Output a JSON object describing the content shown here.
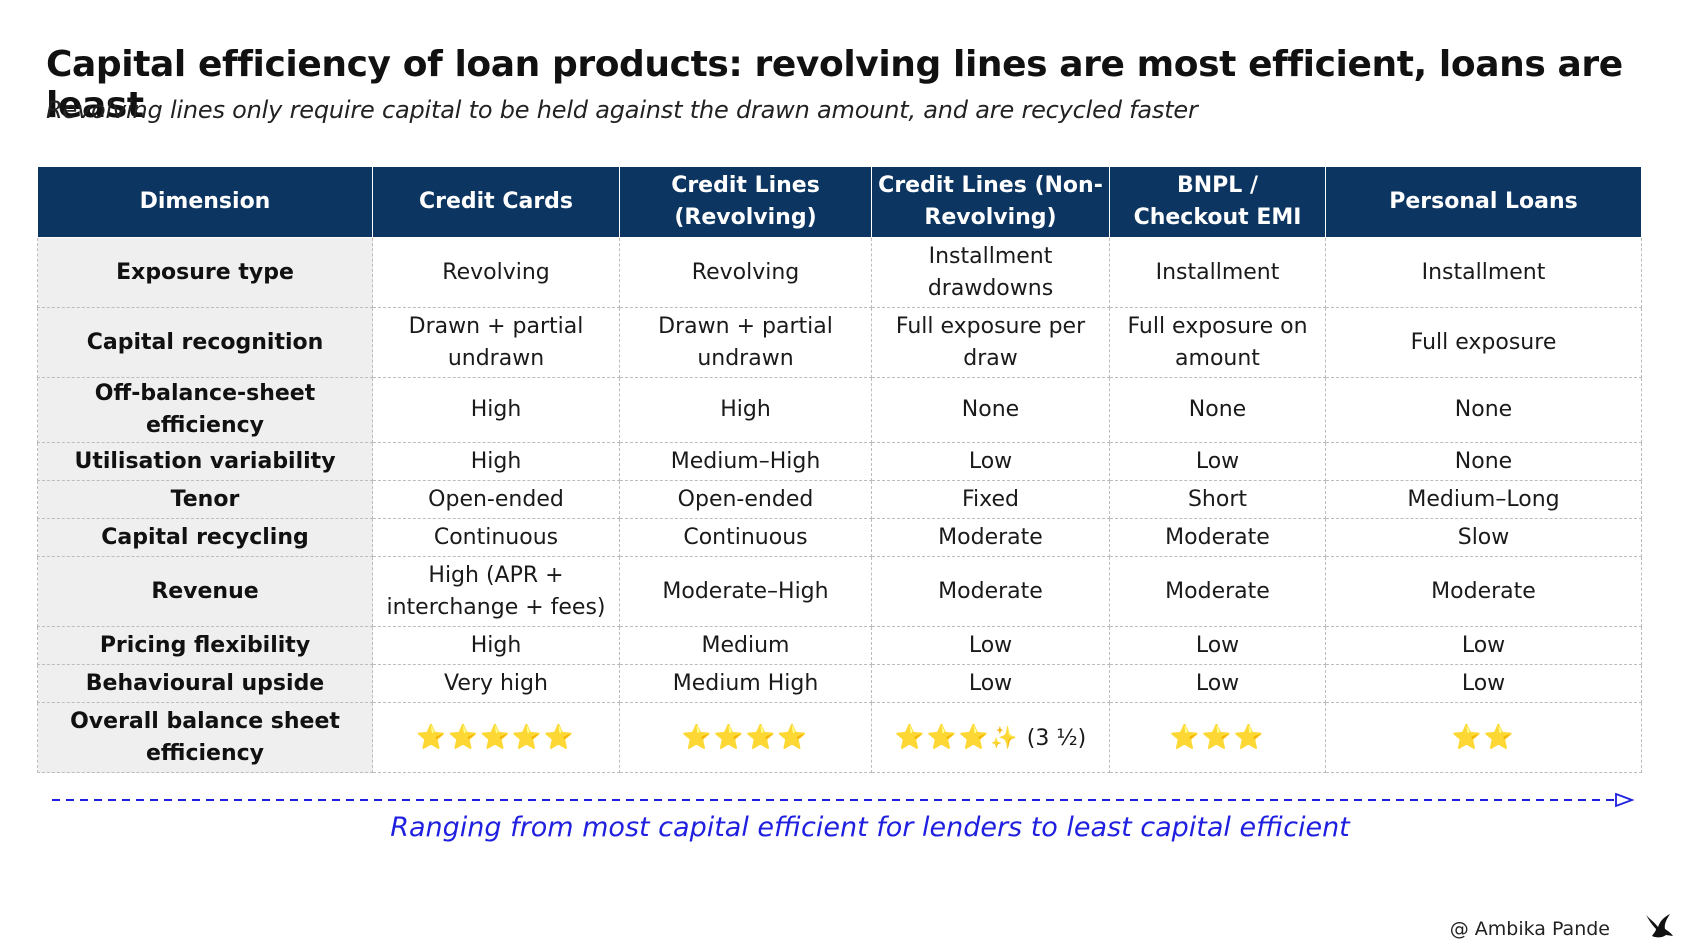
{
  "header": {
    "title": "Capital efficiency of loan products: revolving lines are most efficient, loans are least",
    "subtitle": "Revolving lines only require capital to be held against the drawn amount, and are recycled faster"
  },
  "table": {
    "columns": [
      "Dimension",
      "Credit Cards",
      "Credit Lines (Revolving)",
      "Credit Lines (Non-Revolving)",
      "BNPL / Checkout EMI",
      "Personal Loans"
    ],
    "rows": [
      {
        "dimension": "Exposure type",
        "cells": [
          "Revolving",
          "Revolving",
          "Installment drawdowns",
          "Installment",
          "Installment"
        ]
      },
      {
        "dimension": "Capital recognition",
        "cells": [
          "Drawn + partial undrawn",
          "Drawn + partial undrawn",
          "Full exposure per draw",
          "Full exposure on amount",
          "Full exposure"
        ]
      },
      {
        "dimension": "Off-balance-sheet efficiency",
        "cells": [
          "High",
          "High",
          "None",
          "None",
          "None"
        ]
      },
      {
        "dimension": "Utilisation variability",
        "cells": [
          "High",
          "Medium–High",
          "Low",
          "Low",
          "None"
        ]
      },
      {
        "dimension": "Tenor",
        "cells": [
          "Open-ended",
          "Open-ended",
          "Fixed",
          "Short",
          "Medium–Long"
        ]
      },
      {
        "dimension": "Capital recycling",
        "cells": [
          "Continuous",
          "Continuous",
          "Moderate",
          "Moderate",
          "Slow"
        ]
      },
      {
        "dimension": "Revenue",
        "cells": [
          "High (APR + interchange + fees)",
          "Moderate–High",
          "Moderate",
          "Moderate",
          "Moderate"
        ]
      },
      {
        "dimension": "Pricing flexibility",
        "cells": [
          "High",
          "Medium",
          "Low",
          "Low",
          "Low"
        ]
      },
      {
        "dimension": "Behavioural upside",
        "cells": [
          "Very high",
          "Medium High",
          "Low",
          "Low",
          "Low"
        ]
      }
    ],
    "rating_row": {
      "dimension": "Overall balance sheet efficiency",
      "ratings": [
        {
          "stars": "⭐⭐⭐⭐⭐",
          "value": 5
        },
        {
          "stars": "⭐⭐⭐⭐",
          "value": 4
        },
        {
          "stars": "⭐⭐⭐",
          "sparkle": "✨",
          "note": "(3 ½)",
          "value": 3.5
        },
        {
          "stars": "⭐⭐⭐",
          "value": 3
        },
        {
          "stars": "⭐⭐",
          "value": 2
        }
      ]
    }
  },
  "footer": {
    "caption": "Ranging from most capital efficient for lenders to least capital efficient",
    "credit": "@ Ambika Pande"
  },
  "colors": {
    "header_bg": "#0d3561",
    "dimension_bg": "#efefef",
    "caption_blue": "#1f1fe0"
  },
  "icons": {
    "logo": "bird-logo-icon",
    "arrow": "dashed-arrow-right-icon"
  }
}
